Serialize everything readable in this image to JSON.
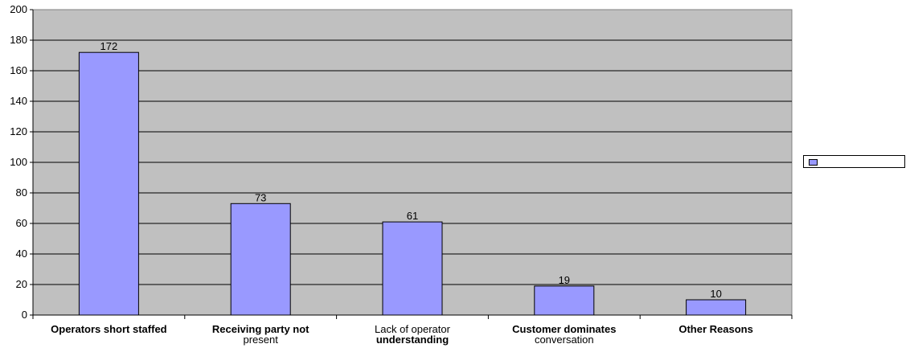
{
  "chart_data": {
    "type": "bar",
    "categories": [
      {
        "line1": "Operators short staffed",
        "line1_bold": true,
        "line2": "",
        "line2_bold": false
      },
      {
        "line1": "Receiving party not",
        "line1_bold": true,
        "line2": "present",
        "line2_bold": false
      },
      {
        "line1": "Lack of operator",
        "line1_bold": false,
        "line2": "understanding",
        "line2_bold": true
      },
      {
        "line1": "Customer dominates",
        "line1_bold": true,
        "line2": "conversation",
        "line2_bold": false
      },
      {
        "line1": "Other Reasons",
        "line1_bold": true,
        "line2": "",
        "line2_bold": false
      }
    ],
    "series": [
      {
        "name": "",
        "values": [
          172,
          73,
          61,
          19,
          10
        ],
        "color": "#9999ff"
      }
    ],
    "data_labels": [
      "172",
      "73",
      "61",
      "19",
      "10"
    ],
    "y_ticks": [
      "0",
      "20",
      "40",
      "60",
      "80",
      "100",
      "120",
      "140",
      "160",
      "180",
      "200"
    ],
    "ylim": [
      0,
      200
    ],
    "y_step": 20,
    "grid": true,
    "plot_background": "#c0c0c0",
    "legend_position": "right",
    "title": "",
    "xlabel": "",
    "ylabel": ""
  }
}
